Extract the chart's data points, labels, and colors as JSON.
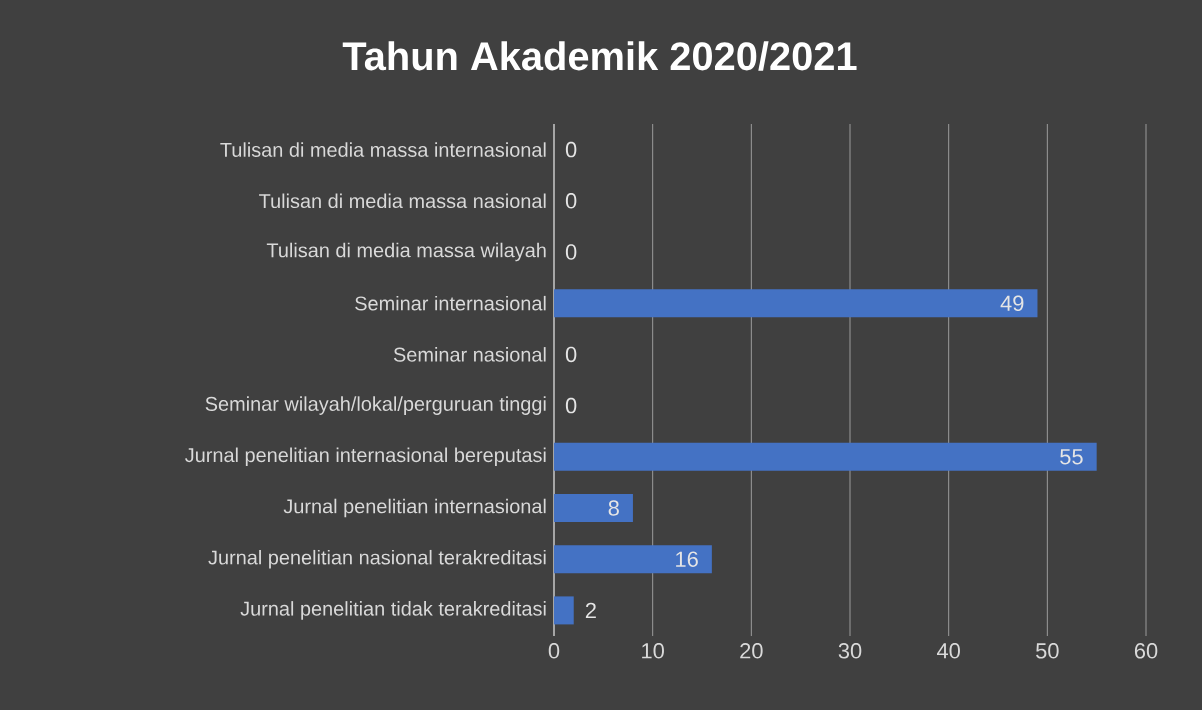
{
  "chart_data": {
    "type": "bar",
    "orientation": "horizontal",
    "title": "Tahun Akademik 2020/2021",
    "categories": [
      "Tulisan di media massa internasional",
      "Tulisan di media massa nasional",
      "Tulisan di media massa wilayah",
      "Seminar internasional",
      "Seminar nasional",
      "Seminar wilayah/lokal/perguruan tinggi",
      "Jurnal penelitian internasional bereputasi",
      "Jurnal penelitian internasional",
      "Jurnal penelitian nasional terakreditasi",
      "Jurnal penelitian tidak terakreditasi"
    ],
    "values": [
      0,
      0,
      0,
      49,
      0,
      0,
      55,
      8,
      16,
      2
    ],
    "color": "#4472c4",
    "xlim": [
      0,
      60
    ],
    "xticks": [
      0,
      10,
      20,
      30,
      40,
      50,
      60
    ],
    "grid": "x",
    "data_labels": true
  }
}
